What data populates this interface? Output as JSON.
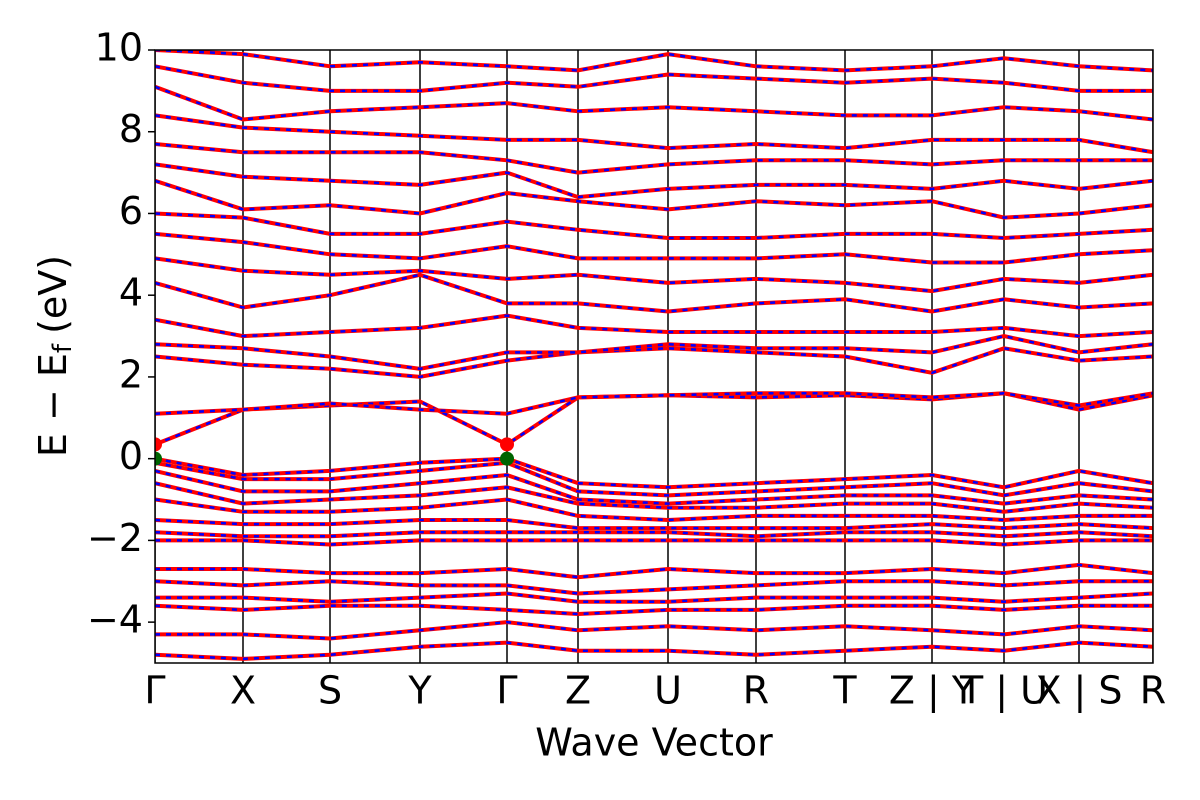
{
  "chart_data": {
    "type": "band",
    "xlabel": "Wave Vector",
    "ylabel": {
      "main": "E − E",
      "sub": "f",
      "unit": "(eV)"
    },
    "xlim": [
      0,
      9.98
    ],
    "ylim": [
      -5,
      10
    ],
    "yticks": [
      {
        "value": -4,
        "label": "−4"
      },
      {
        "value": -2,
        "label": "−2"
      },
      0,
      2,
      4,
      6,
      8,
      10
    ],
    "x": [
      0,
      0.88,
      1.75,
      2.65,
      3.52,
      4.23,
      5.13,
      6.01,
      6.9,
      7.77,
      8.49,
      9.24,
      9.98
    ],
    "xticks": [
      "Γ",
      "X",
      "S",
      "Y",
      "Γ",
      "Z",
      "U",
      "R",
      "T",
      "Z | Y",
      "T | U",
      "X | S",
      "R"
    ],
    "line_color": "#ff0000",
    "overlay_color": "#0000ff",
    "bands": [
      [
        0,
        -0.4,
        -0.3,
        -0.1,
        0,
        -0.6,
        -0.7,
        -0.6,
        -0.5,
        -0.4,
        -0.7,
        -0.3,
        -0.6
      ],
      [
        -0.1,
        -0.5,
        -0.5,
        -0.3,
        -0.1,
        -0.8,
        -0.9,
        -0.8,
        -0.7,
        -0.6,
        -0.9,
        -0.6,
        -0.8
      ],
      [
        -0.3,
        -0.8,
        -0.8,
        -0.6,
        -0.4,
        -1.0,
        -1.1,
        -1.0,
        -0.9,
        -0.9,
        -1.1,
        -0.9,
        -1.0
      ],
      [
        -0.6,
        -1.1,
        -1.0,
        -0.9,
        -0.7,
        -1.1,
        -1.2,
        -1.2,
        -1.1,
        -1.1,
        -1.3,
        -1.1,
        -1.2
      ],
      [
        -1.0,
        -1.3,
        -1.3,
        -1.2,
        -1.0,
        -1.4,
        -1.5,
        -1.4,
        -1.4,
        -1.4,
        -1.5,
        -1.4,
        -1.4
      ],
      [
        -1.5,
        -1.6,
        -1.6,
        -1.5,
        -1.5,
        -1.7,
        -1.7,
        -1.7,
        -1.7,
        -1.6,
        -1.7,
        -1.6,
        -1.7
      ],
      [
        -1.8,
        -1.9,
        -1.9,
        -1.8,
        -1.8,
        -1.8,
        -1.8,
        -1.9,
        -1.8,
        -1.8,
        -1.9,
        -1.8,
        -1.9
      ],
      [
        -2.0,
        -2.0,
        -2.1,
        -2.0,
        -2.0,
        -2.0,
        -2.0,
        -2.0,
        -2.0,
        -2.0,
        -2.1,
        -2.0,
        -2.0
      ],
      [
        -2.7,
        -2.7,
        -2.8,
        -2.8,
        -2.7,
        -2.9,
        -2.7,
        -2.8,
        -2.8,
        -2.7,
        -2.8,
        -2.6,
        -2.8
      ],
      [
        -3.0,
        -3.1,
        -3.0,
        -3.1,
        -3.1,
        -3.3,
        -3.2,
        -3.1,
        -3.0,
        -3.0,
        -3.1,
        -3.0,
        -3.0
      ],
      [
        -3.4,
        -3.4,
        -3.5,
        -3.4,
        -3.3,
        -3.5,
        -3.5,
        -3.4,
        -3.4,
        -3.4,
        -3.5,
        -3.4,
        -3.3
      ],
      [
        -3.6,
        -3.7,
        -3.6,
        -3.6,
        -3.7,
        -3.8,
        -3.7,
        -3.7,
        -3.6,
        -3.6,
        -3.7,
        -3.6,
        -3.6
      ],
      [
        -4.3,
        -4.3,
        -4.4,
        -4.2,
        -4.0,
        -4.2,
        -4.1,
        -4.2,
        -4.1,
        -4.2,
        -4.3,
        -4.1,
        -4.2
      ],
      [
        -4.8,
        -4.9,
        -4.8,
        -4.6,
        -4.5,
        -4.7,
        -4.7,
        -4.8,
        -4.7,
        -4.6,
        -4.7,
        -4.5,
        -4.6
      ],
      [
        0.35,
        1.2,
        1.3,
        1.4,
        0.35,
        1.5,
        1.55,
        1.5,
        1.55,
        1.45,
        1.6,
        1.2,
        1.55
      ],
      [
        1.1,
        1.2,
        1.35,
        1.2,
        1.1,
        1.5,
        1.55,
        1.6,
        1.6,
        1.5,
        1.6,
        1.3,
        1.6
      ],
      [
        2.5,
        2.3,
        2.2,
        2.0,
        2.4,
        2.6,
        2.7,
        2.6,
        2.5,
        2.1,
        2.7,
        2.4,
        2.5
      ],
      [
        2.8,
        2.7,
        2.5,
        2.2,
        2.6,
        2.6,
        2.8,
        2.7,
        2.7,
        2.6,
        3.0,
        2.6,
        2.8
      ],
      [
        3.4,
        3.0,
        3.1,
        3.2,
        3.5,
        3.2,
        3.1,
        3.1,
        3.1,
        3.1,
        3.2,
        3.0,
        3.1
      ],
      [
        4.3,
        3.7,
        4.0,
        4.5,
        3.8,
        3.8,
        3.6,
        3.8,
        3.9,
        3.6,
        3.9,
        3.7,
        3.8
      ],
      [
        4.9,
        4.6,
        4.5,
        4.6,
        4.4,
        4.5,
        4.3,
        4.4,
        4.3,
        4.1,
        4.4,
        4.3,
        4.5
      ],
      [
        5.5,
        5.3,
        5.0,
        4.9,
        5.2,
        4.9,
        4.9,
        4.9,
        5.0,
        4.8,
        4.8,
        5.0,
        5.1
      ],
      [
        6.0,
        5.9,
        5.5,
        5.5,
        5.8,
        5.6,
        5.4,
        5.4,
        5.5,
        5.5,
        5.4,
        5.5,
        5.6
      ],
      [
        6.8,
        6.1,
        6.2,
        6.0,
        6.5,
        6.3,
        6.1,
        6.3,
        6.2,
        6.3,
        5.9,
        6.0,
        6.2
      ],
      [
        7.2,
        6.9,
        6.8,
        6.7,
        7.0,
        6.4,
        6.6,
        6.7,
        6.7,
        6.6,
        6.8,
        6.6,
        6.8
      ],
      [
        7.7,
        7.5,
        7.5,
        7.5,
        7.3,
        7.0,
        7.2,
        7.3,
        7.3,
        7.2,
        7.3,
        7.3,
        7.3
      ],
      [
        8.4,
        8.1,
        8.0,
        7.9,
        7.8,
        7.8,
        7.6,
        7.7,
        7.6,
        7.8,
        7.8,
        7.8,
        7.5
      ],
      [
        9.1,
        8.3,
        8.5,
        8.6,
        8.7,
        8.5,
        8.6,
        8.5,
        8.4,
        8.4,
        8.6,
        8.5,
        8.3
      ],
      [
        9.6,
        9.2,
        9.0,
        9.0,
        9.2,
        9.1,
        9.4,
        9.3,
        9.2,
        9.3,
        9.2,
        9.0,
        9.0
      ],
      [
        10.0,
        9.9,
        9.6,
        9.7,
        9.6,
        9.5,
        9.9,
        9.6,
        9.5,
        9.6,
        9.8,
        9.6,
        9.5
      ]
    ],
    "markers": [
      {
        "x": 0,
        "y": 0.35,
        "color": "#ff0000"
      },
      {
        "x": 3.52,
        "y": 0.35,
        "color": "#ff0000"
      },
      {
        "x": 0,
        "y": 0,
        "color": "#006400"
      },
      {
        "x": 3.52,
        "y": 0,
        "color": "#006400"
      }
    ]
  }
}
